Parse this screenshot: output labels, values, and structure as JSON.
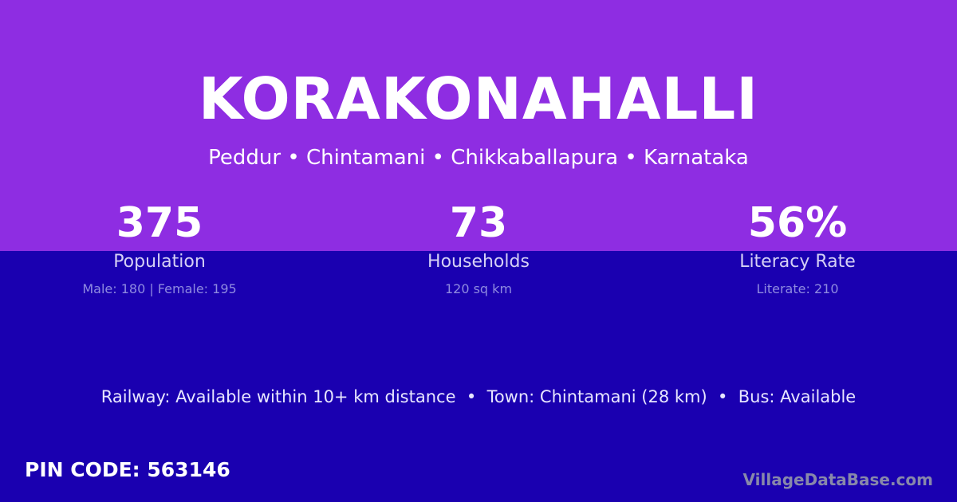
{
  "colors": {
    "top_background": "#8e2de2",
    "bottom_background": "#1a00b0"
  },
  "village": {
    "name": "KORAKONAHALLI",
    "location": "Peddur • Chintamani • Chikkaballapura • Karnataka"
  },
  "stats": [
    {
      "value": "375",
      "label": "Population",
      "detail": "Male: 180 | Female: 195"
    },
    {
      "value": "73",
      "label": "Households",
      "detail": "120 sq km"
    },
    {
      "value": "56%",
      "label": "Literacy Rate",
      "detail": "Literate: 210"
    }
  ],
  "facts": "Railway: Available within 10+ km distance  •  Town: Chintamani (28 km)  •  Bus: Available",
  "pin": "PIN CODE: 563146",
  "brand": "VillageDataBase.com"
}
